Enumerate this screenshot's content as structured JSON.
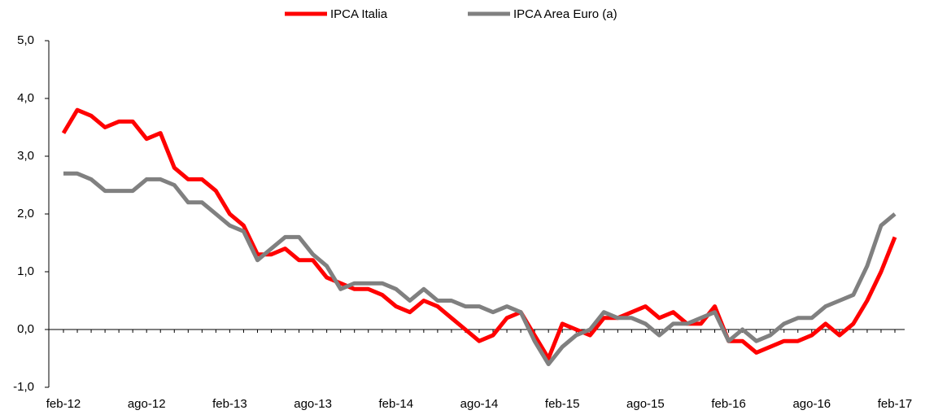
{
  "chart_data": {
    "type": "line",
    "categories": [
      "feb-12",
      null,
      null,
      null,
      null,
      null,
      "ago-12",
      null,
      null,
      null,
      null,
      null,
      "feb-13",
      null,
      null,
      null,
      null,
      null,
      "ago-13",
      null,
      null,
      null,
      null,
      null,
      "feb-14",
      null,
      null,
      null,
      null,
      null,
      "ago-14",
      null,
      null,
      null,
      null,
      null,
      "feb-15",
      null,
      null,
      null,
      null,
      null,
      "ago-15",
      null,
      null,
      null,
      null,
      null,
      "feb-16",
      null,
      null,
      null,
      null,
      null,
      "ago-16",
      null,
      null,
      null,
      null,
      null,
      "feb-17"
    ],
    "series": [
      {
        "name": "IPCA Italia",
        "color": "#ff0000",
        "values": [
          3.4,
          3.8,
          3.7,
          3.5,
          3.6,
          3.6,
          3.3,
          3.4,
          2.8,
          2.6,
          2.6,
          2.4,
          2.0,
          1.8,
          1.3,
          1.3,
          1.4,
          1.2,
          1.2,
          0.9,
          0.8,
          0.7,
          0.7,
          0.6,
          0.4,
          0.3,
          0.5,
          0.4,
          0.2,
          0.0,
          -0.2,
          -0.1,
          0.2,
          0.3,
          -0.1,
          -0.5,
          0.1,
          0.0,
          -0.1,
          0.2,
          0.2,
          0.3,
          0.4,
          0.2,
          0.3,
          0.1,
          0.1,
          0.4,
          -0.2,
          -0.2,
          -0.4,
          -0.3,
          -0.2,
          -0.2,
          -0.1,
          0.1,
          -0.1,
          0.1,
          0.5,
          1.0,
          1.6
        ]
      },
      {
        "name": "IPCA Area Euro (a)",
        "color": "#808080",
        "values": [
          2.7,
          2.7,
          2.6,
          2.4,
          2.4,
          2.4,
          2.6,
          2.6,
          2.5,
          2.2,
          2.2,
          2.0,
          1.8,
          1.7,
          1.2,
          1.4,
          1.6,
          1.6,
          1.3,
          1.1,
          0.7,
          0.8,
          0.8,
          0.8,
          0.7,
          0.5,
          0.7,
          0.5,
          0.5,
          0.4,
          0.4,
          0.3,
          0.4,
          0.3,
          -0.2,
          -0.6,
          -0.3,
          -0.1,
          0.0,
          0.3,
          0.2,
          0.2,
          0.1,
          -0.1,
          0.1,
          0.1,
          0.2,
          0.3,
          -0.2,
          0.0,
          -0.2,
          -0.1,
          0.1,
          0.2,
          0.2,
          0.4,
          0.5,
          0.6,
          1.1,
          1.8,
          2.0
        ]
      }
    ],
    "ylim": [
      -1,
      5
    ],
    "yticks": [
      {
        "value": -1,
        "label": "-1,0"
      },
      {
        "value": 0,
        "label": "0,0"
      },
      {
        "value": 1,
        "label": "1,0"
      },
      {
        "value": 2,
        "label": "2,0"
      },
      {
        "value": 3,
        "label": "3,0"
      },
      {
        "value": 4,
        "label": "4,0"
      },
      {
        "value": 5,
        "label": "5,0"
      }
    ],
    "legend": "top",
    "grid": false
  }
}
